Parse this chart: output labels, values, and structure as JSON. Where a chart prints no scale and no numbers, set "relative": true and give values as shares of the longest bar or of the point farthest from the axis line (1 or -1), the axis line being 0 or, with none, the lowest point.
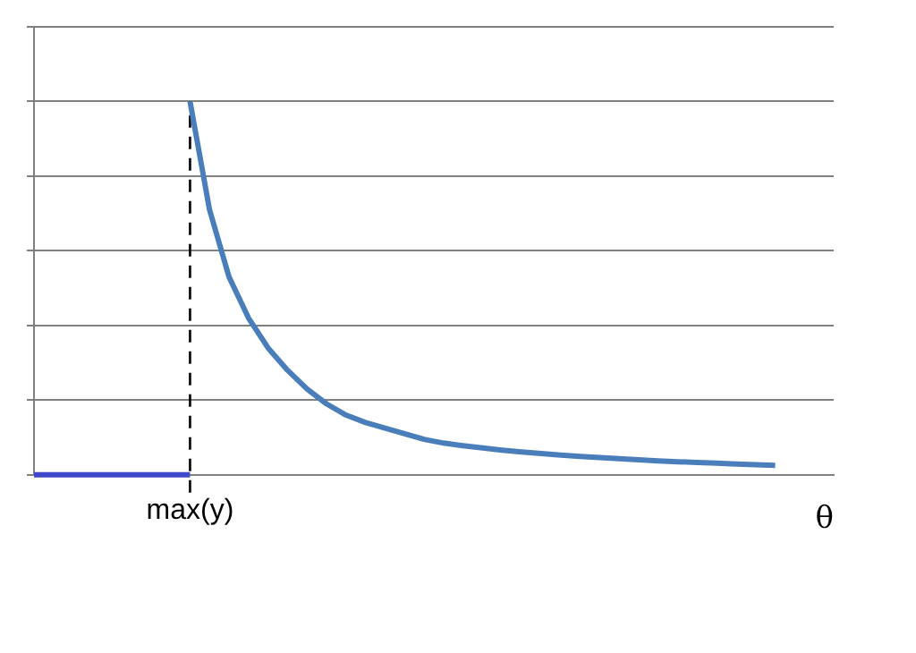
{
  "chart_data": {
    "type": "line",
    "relative": true,
    "xlabel": "θ",
    "categories": [
      null,
      null,
      null,
      null,
      null,
      null,
      null,
      null,
      null,
      null,
      null,
      null,
      null,
      null,
      null,
      null,
      null,
      null,
      null,
      null,
      null,
      null,
      null,
      null,
      null,
      null,
      null,
      null,
      null,
      null,
      null,
      null,
      null,
      null,
      null,
      null,
      null,
      null,
      null,
      null,
      null,
      null
    ],
    "ref_lines": [
      {
        "axis": "x",
        "label": "max(y)",
        "color": "#000000",
        "line_style": "dashed"
      }
    ],
    "grid": "y",
    "legend": false,
    "marker": "none",
    "series": [
      {
        "color": "#4a7ebb",
        "values": [
          null,
          null,
          null,
          null,
          null,
          null,
          null,
          null,
          1,
          0.71,
          0.53,
          0.42,
          0.34,
          0.28,
          0.23,
          0.19,
          0.16,
          0.14,
          0.125,
          0.11,
          0.095,
          0.085,
          0.078,
          0.072,
          0.066,
          0.061,
          0.057,
          0.053,
          0.049,
          0.046,
          0.043,
          0.04,
          0.037,
          0.035,
          0.033,
          0.031,
          0.029,
          0.027,
          0.025,
          null,
          null,
          null
        ]
      },
      {
        "color": "#3f48cc",
        "values": [
          0,
          0,
          0,
          0,
          0,
          0,
          0,
          0,
          0,
          null,
          null,
          null,
          null,
          null,
          null,
          null,
          null,
          null,
          null,
          null,
          null,
          null,
          null,
          null,
          null,
          null,
          null,
          null,
          null,
          null,
          null,
          null,
          null,
          null,
          null,
          null,
          null,
          null,
          null,
          null,
          null,
          null
        ]
      }
    ]
  }
}
